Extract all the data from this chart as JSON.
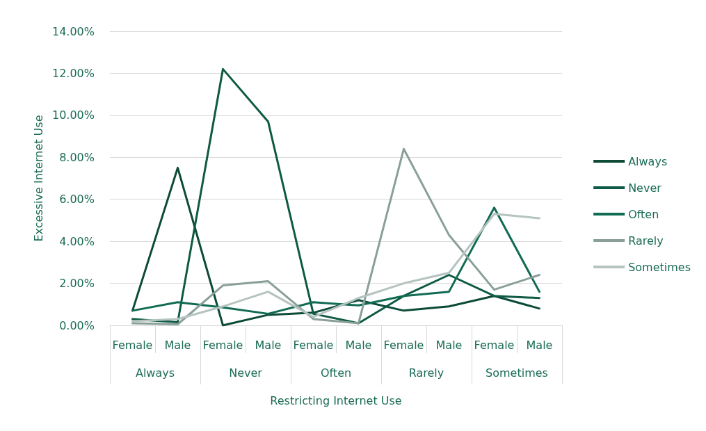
{
  "chart_data": {
    "type": "line",
    "xlabel": "Restricting Internet Use",
    "ylabel": "Excessive Internet Use",
    "categories": [
      "Female",
      "Male",
      "Female",
      "Male",
      "Female",
      "Male",
      "Female",
      "Male",
      "Female",
      "Male"
    ],
    "annotations": [
      "Always",
      "Never",
      "Often",
      "Rarely",
      "Sometimes"
    ],
    "series": [
      {
        "name": "Always",
        "color": "#0d4a38",
        "values": [
          0.7,
          7.5,
          0,
          0.5,
          0.6,
          1.2,
          0.7,
          0.9,
          1.4,
          0.8
        ]
      },
      {
        "name": "Never",
        "color": "#0e5a44",
        "values": [
          0.3,
          0.15,
          12.2,
          9.7,
          0.55,
          0.1,
          1.4,
          2.4,
          1.4,
          1.3
        ]
      },
      {
        "name": "Often",
        "color": "#116b53",
        "values": [
          0.7,
          1.1,
          0.85,
          0.55,
          1.1,
          0.95,
          1.4,
          1.6,
          5.6,
          1.6
        ]
      },
      {
        "name": "Rarely",
        "color": "#8a9f99",
        "values": [
          0.1,
          0.05,
          1.9,
          2.1,
          0.3,
          0.1,
          8.4,
          4.3,
          1.7,
          2.4
        ]
      },
      {
        "name": "Sometimes",
        "color": "#b5c4c0",
        "values": [
          0.2,
          0.3,
          0.9,
          1.6,
          0.4,
          1.3,
          2.0,
          2.5,
          5.3,
          5.1
        ]
      }
    ],
    "ylim": [
      0,
      14
    ],
    "yticks": [
      {
        "value": 0,
        "label": "0.00%"
      },
      {
        "value": 2,
        "label": "2.00%"
      },
      {
        "value": 4,
        "label": "4.00%"
      },
      {
        "value": 6,
        "label": "6.00%"
      },
      {
        "value": 8,
        "label": "8.00%"
      },
      {
        "value": 10,
        "label": "10.00%"
      },
      {
        "value": 12,
        "label": "12.00%"
      },
      {
        "value": 14,
        "label": "14.00%"
      }
    ],
    "grid": "y",
    "legend": "right",
    "marker": "none",
    "line_style": "solid"
  }
}
